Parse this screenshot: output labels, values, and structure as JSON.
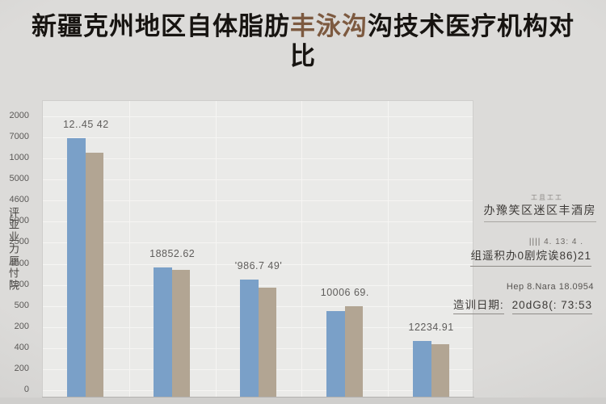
{
  "title": {
    "part1": "新疆克州地区自体脂肪",
    "highlight": "丰泳沟",
    "part2": "沟技术医疗机构对比",
    "highlight_color": "#7d5a40"
  },
  "chart_data": {
    "type": "bar",
    "title": "新疆克州地区自体脂肪丰泳沟沟技术医疗机构对比",
    "xlabel": "",
    "ylabel": "评亚业力厘忖院",
    "grid": true,
    "legend": "none",
    "y_tick_labels": [
      "2000",
      "7000",
      "1000",
      "5000",
      "4600",
      "5000",
      "2500",
      "4000",
      "1800",
      "500",
      "200",
      "400",
      "200",
      "0"
    ],
    "categories": [
      "",
      "",
      "",
      "",
      ""
    ],
    "bar_labels": [
      "12..45 42",
      "18852.62",
      "'986.7 49'",
      "10006 69.",
      "12234.91"
    ],
    "series": [
      {
        "name": "blue-series",
        "color": "#7aa0c8",
        "values_pct_of_axis": [
          87.0,
          43.5,
          39.4,
          28.8,
          18.8
        ]
      },
      {
        "name": "tan-series",
        "color": "#b2a593",
        "values_pct_of_axis": [
          82.1,
          42.7,
          36.7,
          30.4,
          17.7
        ]
      }
    ]
  },
  "annotations": {
    "line1": "工且工工",
    "line2": "办豫笑区迷区丰酒房",
    "line3": "|||| 4. 13: 4 .",
    "line4": "组遥积办0剧烷诶86)21",
    "line5": "Hep 8.Nara 18.0954",
    "line6_label": "造训日期:",
    "line6_value": "20dG8(: 73:53"
  },
  "colors": {
    "page_background": "#d8d7d5",
    "plot_background": "#eaeae8",
    "gridline": "#f6f5f3",
    "bar_blue": "#7aa0c8",
    "bar_tan": "#b2a593",
    "title_text": "#171411",
    "title_highlight": "#7d5a40",
    "tick_text": "#5a5856",
    "label_text": "#5f5d5b"
  }
}
